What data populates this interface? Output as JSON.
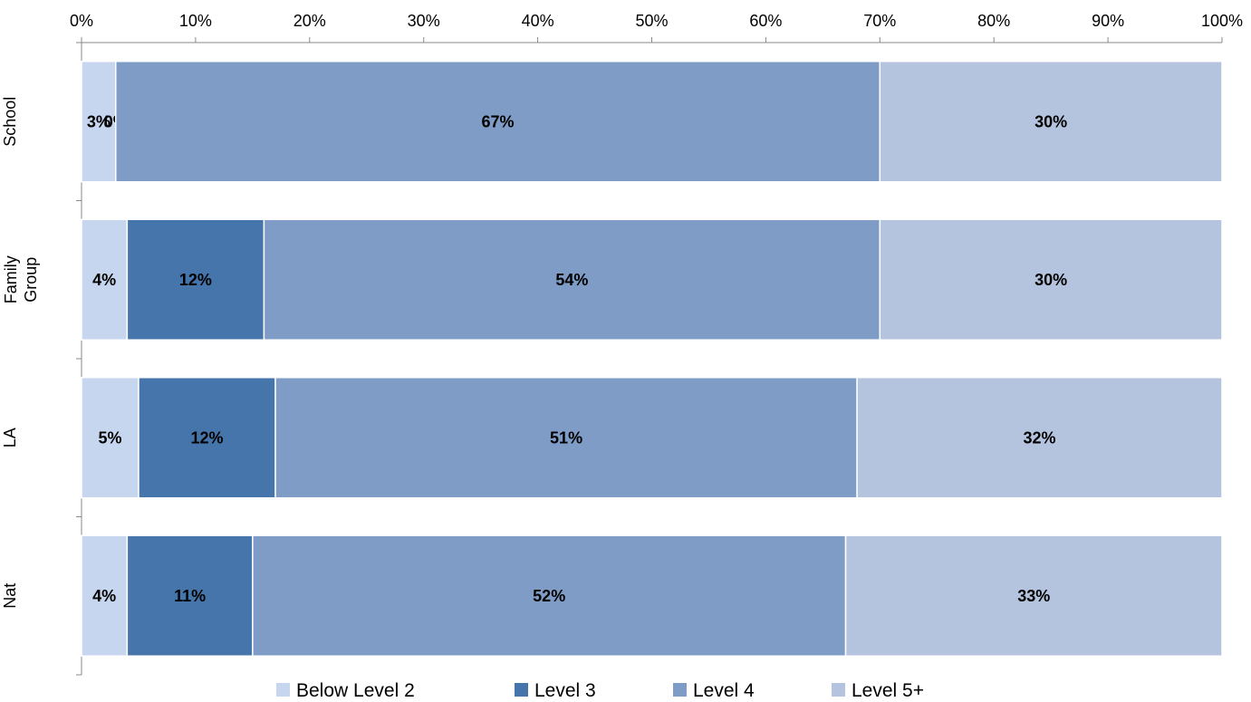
{
  "chart_data": {
    "type": "bar",
    "orientation": "horizontal",
    "stacked": "percent",
    "categories": [
      "School",
      [
        "Family",
        "Group"
      ],
      "LA",
      "Nat"
    ],
    "category_labels": [
      "School",
      "Family Group",
      "LA",
      "Nat"
    ],
    "series": [
      {
        "name": "Below Level 2",
        "color": "#c6d6ee",
        "values": [
          3,
          4,
          5,
          4
        ],
        "labels": [
          "3%",
          "4%",
          "5%",
          "4%"
        ]
      },
      {
        "name": "Level 3",
        "color": "#4675ab",
        "values": [
          0,
          12,
          12,
          11
        ],
        "labels": [
          "0%",
          "12%",
          "12%",
          "11%"
        ]
      },
      {
        "name": "Level 4",
        "color": "#7f9cc7",
        "values": [
          67,
          54,
          51,
          52
        ],
        "labels": [
          "67%",
          "54%",
          "51%",
          "52%"
        ]
      },
      {
        "name": "Level 5+",
        "color": "#b4c3de",
        "values": [
          30,
          30,
          32,
          33
        ],
        "labels": [
          "30%",
          "30%",
          "32%",
          "33%"
        ]
      }
    ],
    "xaxis": {
      "ticks": [
        0,
        10,
        20,
        30,
        40,
        50,
        60,
        70,
        80,
        90,
        100
      ],
      "tick_labels": [
        "0%",
        "10%",
        "20%",
        "30%",
        "40%",
        "50%",
        "60%",
        "70%",
        "80%",
        "90%",
        "100%"
      ],
      "position": "top"
    },
    "xlim": [
      0,
      100
    ],
    "grid": false,
    "legend": "bottom"
  }
}
